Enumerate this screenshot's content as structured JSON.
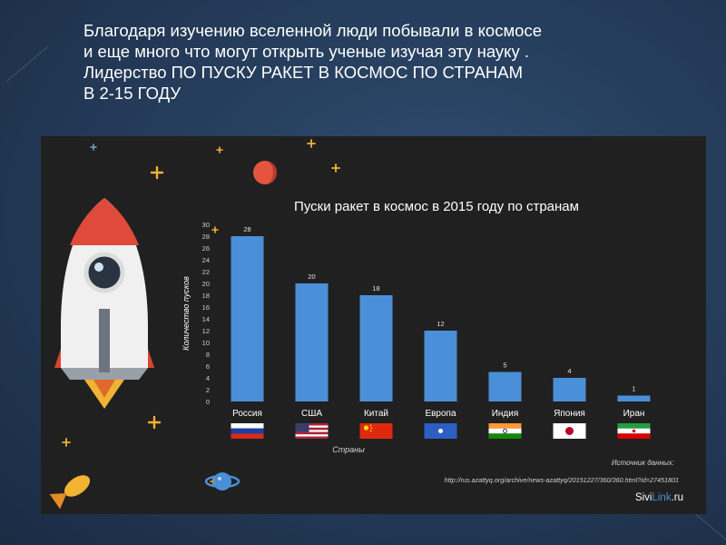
{
  "slide": {
    "heading_lines": [
      "Благодаря изучению вселенной люди побывали  в космосе",
      "и еще много что могут открыть ученые изучая эту науку .",
      "Лидерство ПО ПУСКУ РАКЕТ В КОСМОС ПО СТРАНАМ",
      "В 2-15 ГОДУ"
    ]
  },
  "chart_data": {
    "type": "bar",
    "title": "Пуски ракет в космос в 2015 году по странам",
    "xlabel": "Страны",
    "ylabel": "Количество пусков",
    "categories": [
      "Россия",
      "США",
      "Китай",
      "Европа",
      "Индия",
      "Япония",
      "Иран"
    ],
    "values": [
      28,
      20,
      18,
      12,
      5,
      4,
      1
    ],
    "data_labels": [
      "28",
      "20",
      "18",
      "12",
      "5",
      "4",
      "1"
    ],
    "ylim": [
      0,
      30
    ],
    "yticks": [
      0,
      2,
      4,
      6,
      8,
      10,
      12,
      14,
      16,
      18,
      20,
      22,
      24,
      26,
      28,
      30
    ],
    "grid": false,
    "bar_color": "#4a8fd8",
    "source_label": "Источник данных:",
    "source_url": "http://rus.azattyq.org/archive/news-azattyq/20151227/360/360.html?id=27451801",
    "brand_prefix": "Sivi",
    "brand_highlight": "Link",
    "brand_suffix": ".ru",
    "flags": [
      "russia-flag-icon",
      "usa-flag-icon",
      "china-flag-icon",
      "eu-flag-icon",
      "india-flag-icon",
      "japan-flag-icon",
      "iran-flag-icon"
    ]
  },
  "colors": {
    "background": "#243a58",
    "panel": "#202020",
    "bar": "#4a8fd8",
    "star": "#f2b233",
    "rocket_red": "#e04a3a"
  }
}
